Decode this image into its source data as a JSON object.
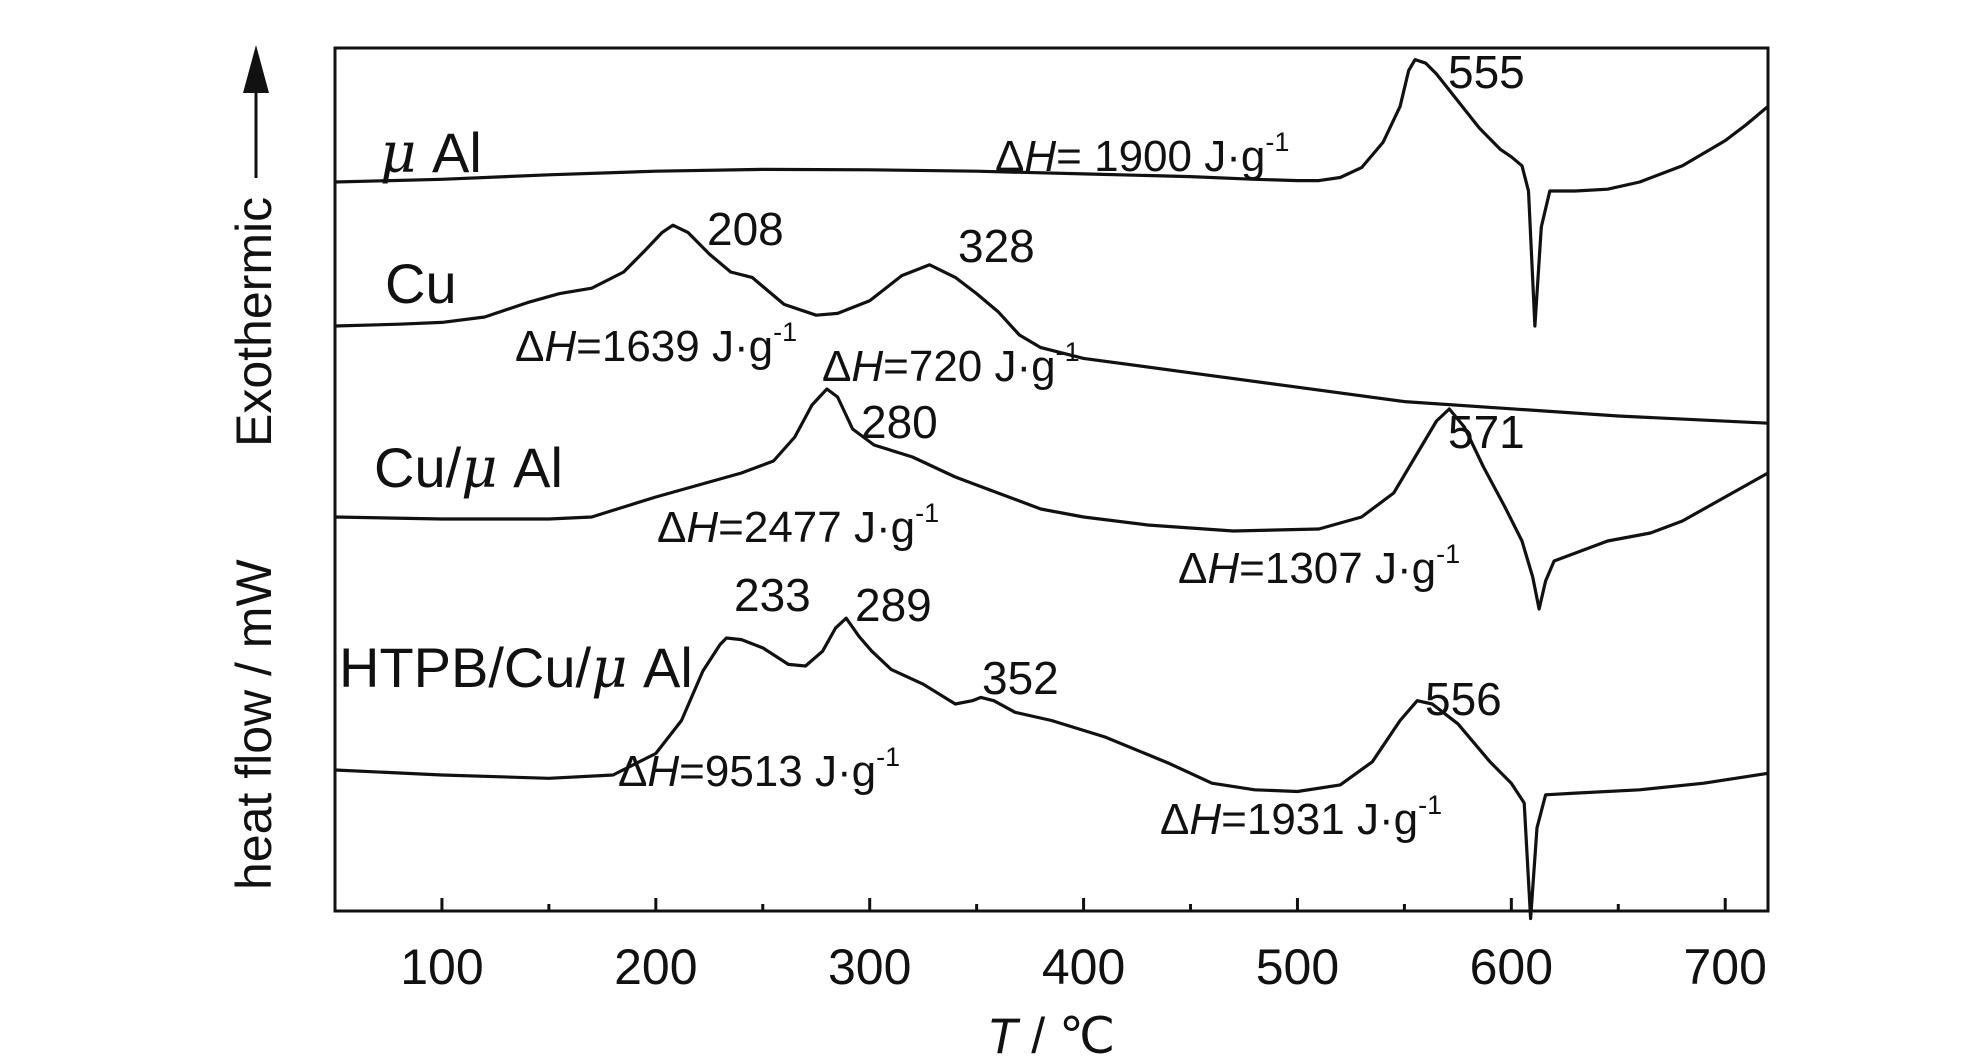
{
  "chart_data": {
    "type": "line",
    "xlabel": "T / ℃",
    "xlabel_italic": "T",
    "xlabel_unit": " / ℃",
    "ylabel": "heat flow / mW",
    "ylabel_arrow": "Exothermic",
    "xlim": [
      50,
      720
    ],
    "x_ticks": [
      100,
      200,
      300,
      400,
      500,
      600,
      700
    ],
    "y_ticks": "none",
    "grid": false,
    "series": [
      {
        "name": "μ Al",
        "label_parts": {
          "mu": "μ",
          "rest": " Al"
        },
        "points": [
          [
            50,
            0.1
          ],
          [
            100,
            0.115
          ],
          [
            150,
            0.14
          ],
          [
            200,
            0.16
          ],
          [
            250,
            0.17
          ],
          [
            300,
            0.168
          ],
          [
            350,
            0.16
          ],
          [
            400,
            0.145
          ],
          [
            450,
            0.13
          ],
          [
            480,
            0.115
          ],
          [
            500,
            0.108
          ],
          [
            510,
            0.108
          ],
          [
            520,
            0.125
          ],
          [
            530,
            0.18
          ],
          [
            540,
            0.32
          ],
          [
            548,
            0.52
          ],
          [
            552,
            0.72
          ],
          [
            555,
            0.78
          ],
          [
            560,
            0.76
          ],
          [
            565,
            0.7
          ],
          [
            575,
            0.55
          ],
          [
            585,
            0.4
          ],
          [
            595,
            0.28
          ],
          [
            600,
            0.24
          ],
          [
            605,
            0.19
          ],
          [
            608,
            0.05
          ],
          [
            611,
            -0.7
          ],
          [
            614,
            -0.15
          ],
          [
            618,
            0.05
          ],
          [
            630,
            0.05
          ],
          [
            645,
            0.06
          ],
          [
            660,
            0.1
          ],
          [
            680,
            0.19
          ],
          [
            700,
            0.33
          ],
          [
            710,
            0.42
          ],
          [
            720,
            0.52
          ]
        ],
        "peaks": [
          {
            "x": 555,
            "label": "555"
          }
        ],
        "dH": "1900"
      },
      {
        "name": "Cu",
        "points": [
          [
            50,
            0.0
          ],
          [
            80,
            0.01
          ],
          [
            100,
            0.02
          ],
          [
            120,
            0.05
          ],
          [
            140,
            0.13
          ],
          [
            155,
            0.18
          ],
          [
            170,
            0.21
          ],
          [
            185,
            0.3
          ],
          [
            195,
            0.42
          ],
          [
            203,
            0.52
          ],
          [
            208,
            0.56
          ],
          [
            215,
            0.52
          ],
          [
            225,
            0.4
          ],
          [
            235,
            0.3
          ],
          [
            245,
            0.27
          ],
          [
            260,
            0.12
          ],
          [
            275,
            0.06
          ],
          [
            285,
            0.07
          ],
          [
            300,
            0.14
          ],
          [
            315,
            0.28
          ],
          [
            328,
            0.34
          ],
          [
            340,
            0.27
          ],
          [
            350,
            0.18
          ],
          [
            360,
            0.08
          ],
          [
            370,
            -0.05
          ],
          [
            380,
            -0.12
          ],
          [
            400,
            -0.18
          ],
          [
            450,
            -0.26
          ],
          [
            500,
            -0.34
          ],
          [
            550,
            -0.42
          ],
          [
            600,
            -0.46
          ],
          [
            650,
            -0.5
          ],
          [
            720,
            -0.54
          ]
        ],
        "peaks": [
          {
            "x": 208,
            "label": "208"
          },
          {
            "x": 328,
            "label": "328"
          }
        ],
        "dH": [
          "1639",
          "720"
        ]
      },
      {
        "name": "Cu/μ Al",
        "label_parts": {
          "pre": "Cu/",
          "mu": "μ",
          "rest": " Al"
        },
        "points": [
          [
            50,
            0.0
          ],
          [
            100,
            -0.01
          ],
          [
            150,
            -0.01
          ],
          [
            170,
            0.0
          ],
          [
            185,
            0.05
          ],
          [
            200,
            0.1
          ],
          [
            220,
            0.16
          ],
          [
            240,
            0.22
          ],
          [
            255,
            0.28
          ],
          [
            265,
            0.4
          ],
          [
            273,
            0.56
          ],
          [
            280,
            0.64
          ],
          [
            285,
            0.6
          ],
          [
            292,
            0.44
          ],
          [
            302,
            0.36
          ],
          [
            320,
            0.3
          ],
          [
            340,
            0.2
          ],
          [
            360,
            0.12
          ],
          [
            380,
            0.04
          ],
          [
            400,
            0.0
          ],
          [
            430,
            -0.04
          ],
          [
            470,
            -0.07
          ],
          [
            510,
            -0.06
          ],
          [
            530,
            0.0
          ],
          [
            545,
            0.12
          ],
          [
            555,
            0.3
          ],
          [
            565,
            0.48
          ],
          [
            571,
            0.54
          ],
          [
            578,
            0.45
          ],
          [
            587,
            0.25
          ],
          [
            597,
            0.05
          ],
          [
            605,
            -0.12
          ],
          [
            610,
            -0.3
          ],
          [
            613,
            -0.46
          ],
          [
            616,
            -0.32
          ],
          [
            620,
            -0.22
          ],
          [
            630,
            -0.18
          ],
          [
            645,
            -0.12
          ],
          [
            665,
            -0.08
          ],
          [
            680,
            -0.02
          ],
          [
            700,
            0.1
          ],
          [
            720,
            0.22
          ]
        ],
        "peaks": [
          {
            "x": 280,
            "label": "280"
          },
          {
            "x": 571,
            "label": "571"
          }
        ],
        "dH": [
          "2477",
          "1307"
        ]
      },
      {
        "name": "HTPB/Cu/μ Al",
        "label_parts": {
          "pre": "HTPB/Cu/",
          "mu": "μ",
          "rest": " Al"
        },
        "points": [
          [
            50,
            0.0
          ],
          [
            100,
            -0.03
          ],
          [
            150,
            -0.05
          ],
          [
            180,
            -0.03
          ],
          [
            200,
            0.1
          ],
          [
            212,
            0.3
          ],
          [
            222,
            0.6
          ],
          [
            230,
            0.76
          ],
          [
            233,
            0.8
          ],
          [
            240,
            0.79
          ],
          [
            250,
            0.74
          ],
          [
            262,
            0.64
          ],
          [
            270,
            0.63
          ],
          [
            278,
            0.72
          ],
          [
            284,
            0.86
          ],
          [
            289,
            0.92
          ],
          [
            295,
            0.81
          ],
          [
            301,
            0.72
          ],
          [
            310,
            0.61
          ],
          [
            325,
            0.52
          ],
          [
            340,
            0.4
          ],
          [
            348,
            0.42
          ],
          [
            352,
            0.44
          ],
          [
            358,
            0.42
          ],
          [
            368,
            0.35
          ],
          [
            385,
            0.3
          ],
          [
            410,
            0.2
          ],
          [
            440,
            0.04
          ],
          [
            460,
            -0.08
          ],
          [
            480,
            -0.12
          ],
          [
            500,
            -0.13
          ],
          [
            520,
            -0.09
          ],
          [
            535,
            0.05
          ],
          [
            548,
            0.3
          ],
          [
            556,
            0.42
          ],
          [
            563,
            0.4
          ],
          [
            575,
            0.28
          ],
          [
            590,
            0.05
          ],
          [
            600,
            -0.08
          ],
          [
            606,
            -0.2
          ],
          [
            609,
            -0.9
          ],
          [
            612,
            -0.35
          ],
          [
            616,
            -0.15
          ],
          [
            630,
            -0.14
          ],
          [
            660,
            -0.12
          ],
          [
            690,
            -0.08
          ],
          [
            720,
            -0.02
          ]
        ],
        "peaks": [
          {
            "x": 233,
            "label": "233"
          },
          {
            "x": 289,
            "label": "289"
          },
          {
            "x": 352,
            "label": "352"
          },
          {
            "x": 556,
            "label": "556"
          }
        ],
        "dH": [
          "9513",
          "1931"
        ]
      }
    ],
    "annotations": [
      {
        "sym": "Δ",
        "h": "H",
        "text": "= 1900 J·g",
        "sup": "-1"
      },
      {
        "sym": "Δ",
        "h": "H",
        "text": "=1639 J·g",
        "sup": "-1"
      },
      {
        "sym": "Δ",
        "h": "H",
        "text": "=720 J·g",
        "sup": "-1"
      },
      {
        "sym": "Δ",
        "h": "H",
        "text": "=2477 J·g",
        "sup": "-1"
      },
      {
        "sym": "Δ",
        "h": "H",
        "text": "=1307 J·g",
        "sup": "-1"
      },
      {
        "sym": "Δ",
        "h": "H",
        "text": "=9513 J·g",
        "sup": "-1"
      },
      {
        "sym": "Δ",
        "h": "H",
        "text": "=1931 J·g",
        "sup": "-1"
      }
    ],
    "line_color": "#111111"
  }
}
